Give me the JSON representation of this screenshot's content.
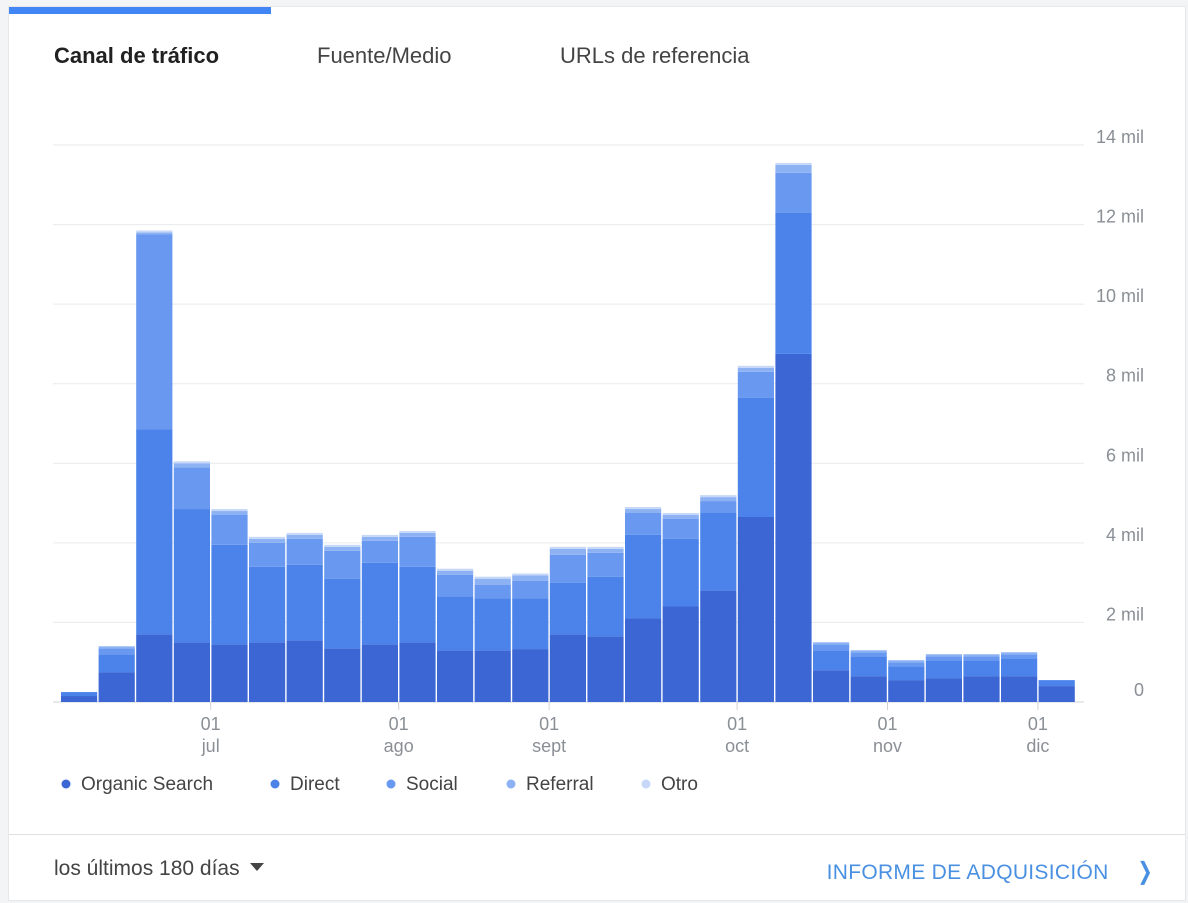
{
  "tabs": [
    {
      "label": "Canal de tráfico",
      "active": true
    },
    {
      "label": "Fuente/Medio",
      "active": false
    },
    {
      "label": "URLs de referencia",
      "active": false
    }
  ],
  "footer": {
    "range_label": "los últimos 180 días",
    "report_link": "INFORME DE ADQUISICIÓN",
    "report_icon": "chevron-right-icon"
  },
  "colors": {
    "accent": "#4285f4",
    "link": "#4a90e2"
  },
  "chart_data": {
    "type": "bar",
    "stacked": true,
    "ylim": [
      0,
      14000
    ],
    "yticks": [
      {
        "value": 0,
        "label": "0"
      },
      {
        "value": 2000,
        "label": "2 mil"
      },
      {
        "value": 4000,
        "label": "4 mil"
      },
      {
        "value": 6000,
        "label": "6 mil"
      },
      {
        "value": 8000,
        "label": "8 mil"
      },
      {
        "value": 10000,
        "label": "10 mil"
      },
      {
        "value": 12000,
        "label": "12 mil"
      },
      {
        "value": 14000,
        "label": "14 mil"
      }
    ],
    "xticks": [
      {
        "after_bar": 4,
        "day": "01",
        "month": "jul"
      },
      {
        "after_bar": 9,
        "day": "01",
        "month": "ago"
      },
      {
        "after_bar": 13,
        "day": "01",
        "month": "sept"
      },
      {
        "after_bar": 18,
        "day": "01",
        "month": "oct"
      },
      {
        "after_bar": 22,
        "day": "01",
        "month": "nov"
      },
      {
        "after_bar": 26,
        "day": "01",
        "month": "dic"
      }
    ],
    "series": [
      {
        "name": "Organic Search",
        "color": "#3b66d4",
        "values": [
          150,
          750,
          1700,
          1500,
          1450,
          1500,
          1550,
          1350,
          1450,
          1500,
          1300,
          1300,
          1330,
          1700,
          1650,
          2100,
          2400,
          2800,
          4650,
          8750,
          800,
          650,
          550,
          600,
          650,
          650,
          400
        ]
      },
      {
        "name": "Direct",
        "color": "#4b83ea",
        "values": [
          100,
          450,
          5150,
          3350,
          2500,
          1900,
          1900,
          1750,
          2050,
          1900,
          1350,
          1300,
          1270,
          1300,
          1500,
          2100,
          1700,
          1950,
          3000,
          3550,
          500,
          500,
          350,
          450,
          400,
          450,
          150
        ]
      },
      {
        "name": "Social",
        "color": "#6898ef",
        "values": [
          0,
          150,
          4900,
          1050,
          750,
          600,
          650,
          700,
          550,
          750,
          550,
          350,
          450,
          700,
          600,
          550,
          500,
          300,
          650,
          1000,
          150,
          100,
          100,
          100,
          100,
          100,
          0
        ]
      },
      {
        "name": "Referral",
        "color": "#8db2f4",
        "values": [
          0,
          50,
          50,
          100,
          100,
          100,
          100,
          100,
          100,
          100,
          100,
          150,
          130,
          150,
          100,
          100,
          100,
          100,
          100,
          200,
          50,
          50,
          50,
          50,
          50,
          50,
          0
        ]
      },
      {
        "name": "Otro",
        "color": "#c6d7f7",
        "values": [
          0,
          0,
          50,
          50,
          50,
          50,
          50,
          50,
          50,
          50,
          50,
          50,
          50,
          50,
          50,
          50,
          50,
          50,
          50,
          50,
          0,
          0,
          0,
          0,
          0,
          0,
          0
        ]
      }
    ]
  }
}
